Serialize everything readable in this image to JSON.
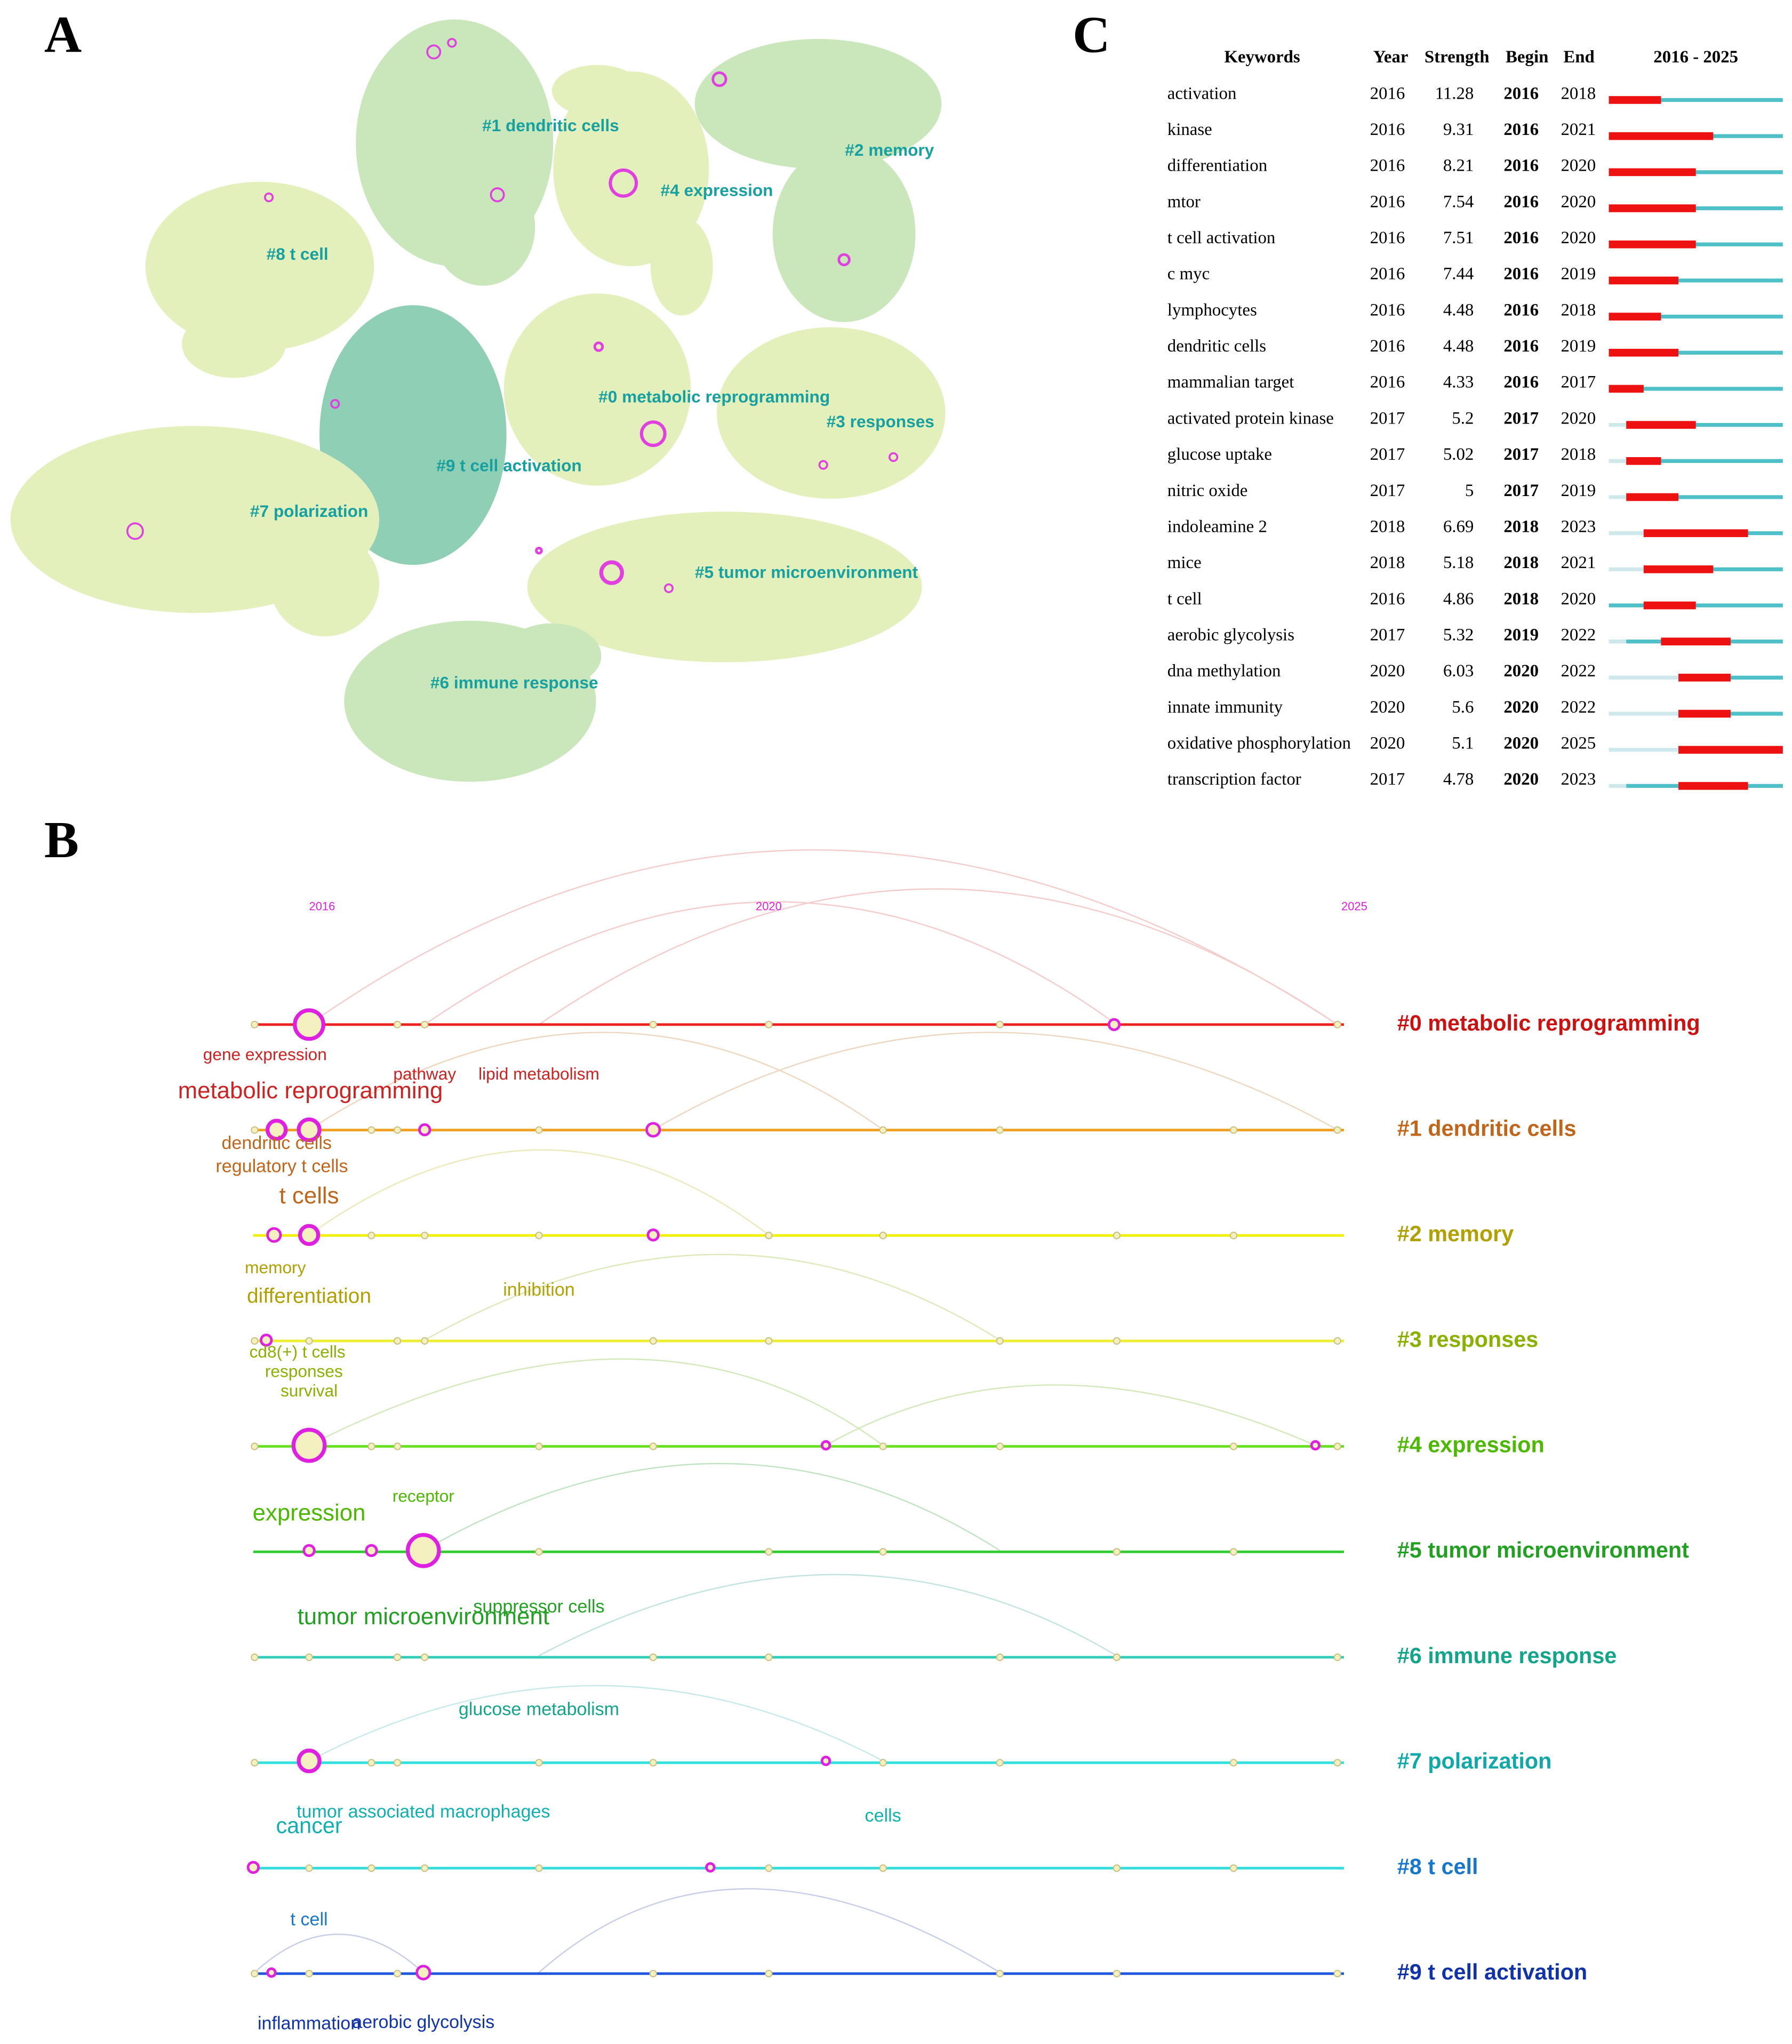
{
  "panel_a": {
    "label": "A",
    "clusters": [
      "#0 metabolic reprogramming",
      "#1 dendritic cells",
      "#2 memory",
      "#3 responses",
      "#4 expression",
      "#5 tumor microenvironment",
      "#6 immune response",
      "#7 polarization",
      "#8 t cell",
      "#9 t cell activation"
    ]
  },
  "panel_b": {
    "label": "B",
    "years": [
      2016,
      2020,
      2025
    ],
    "clusters": [
      "#0 metabolic reprogramming",
      "#1 dendritic cells",
      "#2 memory",
      "#3 responses",
      "#4 expression",
      "#5 tumor microenvironment",
      "#6 immune response",
      "#7 polarization",
      "#8 t cell",
      "#9 t cell activation"
    ],
    "keywords": [
      "gene expression",
      "metabolic reprogramming",
      "pathway",
      "lipid metabolism",
      "dendritic cells",
      "regulatory t cells",
      "t cells",
      "memory",
      "differentiation",
      "inhibition",
      "cd8(+) t cells",
      "responses",
      "survival",
      "expression",
      "receptor",
      "tumor microenvironment",
      "suppressor cells",
      "glucose metabolism",
      "tumor associated macrophages",
      "cancer",
      "cells",
      "t cell",
      "inflammation",
      "aerobic glycolysis"
    ]
  },
  "panel_c": {
    "label": "C",
    "header": [
      "Keywords",
      "Year",
      "Strength",
      "Begin",
      "End",
      "2016 - 2025"
    ],
    "rows": [
      [
        "activation",
        2016,
        11.28,
        2016,
        2018
      ],
      [
        "kinase",
        2016,
        9.31,
        2016,
        2021
      ],
      [
        "differentiation",
        2016,
        8.21,
        2016,
        2020
      ],
      [
        "mtor",
        2016,
        7.54,
        2016,
        2020
      ],
      [
        "t cell activation",
        2016,
        7.51,
        2016,
        2020
      ],
      [
        "c myc",
        2016,
        7.44,
        2016,
        2019
      ],
      [
        "lymphocytes",
        2016,
        4.48,
        2016,
        2018
      ],
      [
        "dendritic cells",
        2016,
        4.48,
        2016,
        2019
      ],
      [
        "mammalian target",
        2016,
        4.33,
        2016,
        2017
      ],
      [
        "activated protein kinase",
        2017,
        5.2,
        2017,
        2020
      ],
      [
        "glucose uptake",
        2017,
        5.02,
        2017,
        2018
      ],
      [
        "nitric oxide",
        2017,
        5,
        2017,
        2019
      ],
      [
        "indoleamine 2",
        2018,
        6.69,
        2018,
        2023
      ],
      [
        "mice",
        2018,
        5.18,
        2018,
        2021
      ],
      [
        "t cell",
        2016,
        4.86,
        2018,
        2020
      ],
      [
        "aerobic glycolysis",
        2017,
        5.32,
        2019,
        2022
      ],
      [
        "dna methylation",
        2020,
        6.03,
        2020,
        2022
      ],
      [
        "innate immunity",
        2020,
        5.6,
        2020,
        2022
      ],
      [
        "oxidative phosphorylation",
        2020,
        5.1,
        2020,
        2025
      ],
      [
        "transcription factor",
        2017,
        4.78,
        2020,
        2023
      ]
    ]
  }
}
